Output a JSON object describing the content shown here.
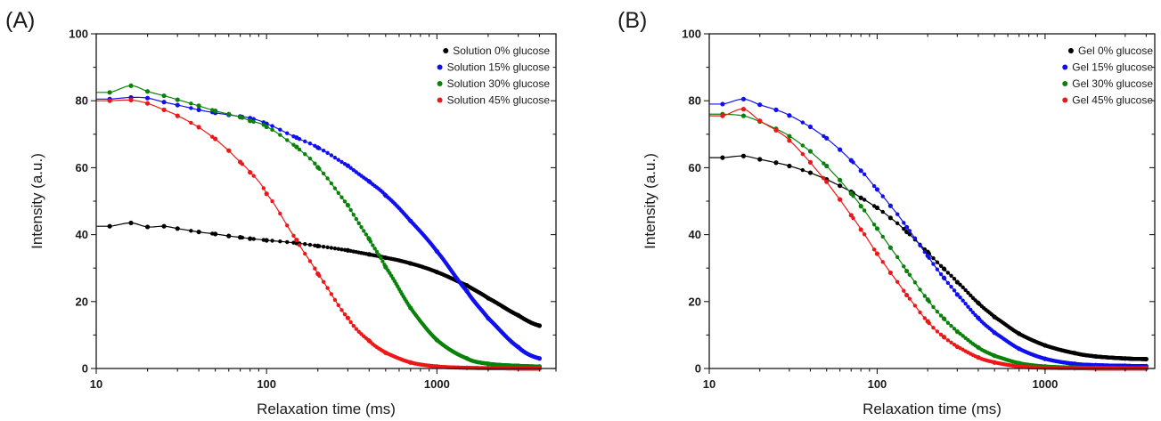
{
  "chart_data": [
    {
      "type": "scatter",
      "panel_label": "(A)",
      "xlabel": "Relaxation time (ms)",
      "ylabel": "Intensity (a.u.)",
      "xscale": "log",
      "xlim": [
        10,
        5000
      ],
      "ylim": [
        0,
        100
      ],
      "xticks": [
        10,
        100,
        1000
      ],
      "xtick_labels": [
        "10",
        "100",
        "1000"
      ],
      "yticks": [
        0,
        20,
        40,
        60,
        80,
        100
      ],
      "ytick_labels": [
        "0",
        "20",
        "40",
        "60",
        "80",
        "100"
      ],
      "legend_position": "top-right",
      "fit_lines": true,
      "series": [
        {
          "name": "Solution 0% glucose",
          "color": "#000000",
          "x": [
            12,
            16,
            20,
            25,
            30,
            40,
            50,
            60,
            70,
            80,
            100,
            150,
            200,
            300,
            400,
            500,
            700,
            1000,
            1500,
            2000,
            3000,
            4000
          ],
          "y": [
            42.5,
            43.5,
            42.3,
            42.5,
            41.8,
            40.8,
            40.2,
            39.6,
            39.2,
            38.8,
            38.3,
            37.5,
            36.6,
            35.3,
            34.1,
            33.1,
            31.4,
            28.8,
            24.8,
            21.0,
            15.9,
            12.8
          ]
        },
        {
          "name": "Solution 15% glucose",
          "color": "#1010ee",
          "x": [
            12,
            16,
            20,
            25,
            30,
            40,
            50,
            60,
            70,
            80,
            100,
            150,
            200,
            300,
            400,
            500,
            700,
            1000,
            1500,
            2000,
            3000,
            4000
          ],
          "y": [
            80.5,
            81.0,
            80.8,
            79.6,
            78.7,
            77.3,
            76.4,
            75.8,
            75.3,
            74.8,
            73.1,
            69.0,
            66.0,
            60.6,
            55.9,
            51.7,
            44.1,
            35.0,
            23.1,
            15.0,
            6.4,
            3.0
          ]
        },
        {
          "name": "Solution 30% glucose",
          "color": "#0a820a",
          "x": [
            12,
            16,
            20,
            25,
            30,
            40,
            50,
            60,
            70,
            80,
            100,
            150,
            200,
            300,
            400,
            500,
            700,
            1000,
            1500,
            2000,
            3000,
            4000
          ],
          "y": [
            82.5,
            84.5,
            82.8,
            81.5,
            80.3,
            78.5,
            77.0,
            76.0,
            75.1,
            74.0,
            72.2,
            66.2,
            60.1,
            48.8,
            38.7,
            30.3,
            18.1,
            8.5,
            3.0,
            1.4,
            0.8,
            0.6
          ]
        },
        {
          "name": "Solution 45% glucose",
          "color": "#ee1616",
          "x": [
            12,
            16,
            20,
            25,
            30,
            40,
            50,
            60,
            70,
            80,
            100,
            150,
            200,
            300,
            400,
            500,
            700,
            1000,
            1500,
            2000,
            3000,
            4000
          ],
          "y": [
            80.0,
            80.2,
            79.2,
            77.3,
            75.5,
            72.1,
            68.6,
            65.1,
            61.7,
            58.6,
            52.2,
            38.4,
            28.3,
            15.1,
            8.3,
            4.7,
            1.8,
            0.6,
            0.2,
            0.1,
            0.0,
            0.0
          ]
        }
      ]
    },
    {
      "type": "scatter",
      "panel_label": "(B)",
      "xlabel": "Relaxation time (ms)",
      "ylabel": "Intensity (a.u.)",
      "xscale": "log",
      "xlim": [
        10,
        4500
      ],
      "ylim": [
        0,
        100
      ],
      "xticks": [
        10,
        100,
        1000
      ],
      "xtick_labels": [
        "10",
        "100",
        "1000"
      ],
      "yticks": [
        0,
        20,
        40,
        60,
        80,
        100
      ],
      "ytick_labels": [
        "0",
        "20",
        "40",
        "60",
        "80",
        "100"
      ],
      "legend_position": "top-right",
      "fit_lines": true,
      "series": [
        {
          "name": "Gel 0% glucose",
          "color": "#000000",
          "x": [
            12,
            16,
            20,
            25,
            30,
            40,
            50,
            60,
            70,
            80,
            100,
            120,
            150,
            200,
            250,
            300,
            400,
            500,
            700,
            1000,
            1500,
            2000,
            3000,
            4000
          ],
          "y": [
            63.0,
            63.5,
            62.5,
            61.5,
            60.5,
            58.5,
            56.5,
            54.6,
            52.8,
            51.0,
            48.0,
            45.0,
            40.8,
            34.8,
            29.8,
            25.8,
            19.6,
            15.4,
            10.4,
            6.9,
            4.6,
            3.6,
            3.0,
            2.8
          ]
        },
        {
          "name": "Gel 15% glucose",
          "color": "#1010ee",
          "x": [
            12,
            16,
            20,
            25,
            30,
            40,
            50,
            60,
            70,
            80,
            100,
            120,
            150,
            200,
            250,
            300,
            400,
            500,
            700,
            1000,
            1500,
            2000,
            3000,
            4000
          ],
          "y": [
            79.0,
            80.5,
            78.8,
            77.3,
            75.6,
            72.2,
            68.8,
            65.4,
            62.2,
            59.1,
            53.5,
            48.6,
            42.2,
            33.7,
            27.1,
            22.1,
            15.1,
            10.7,
            5.9,
            2.9,
            1.4,
            1.0,
            0.8,
            0.7
          ]
        },
        {
          "name": "Gel 30% glucose",
          "color": "#0a820a",
          "x": [
            12,
            16,
            20,
            25,
            30,
            40,
            50,
            60,
            70,
            80,
            100,
            120,
            150,
            200,
            250,
            300,
            400,
            500,
            700,
            1000,
            1500,
            2000,
            3000,
            4000
          ],
          "y": [
            76.0,
            75.5,
            73.8,
            71.6,
            69.4,
            64.9,
            60.5,
            56.3,
            52.3,
            48.5,
            41.8,
            36.1,
            29.1,
            20.6,
            14.9,
            11.0,
            6.3,
            3.8,
            1.6,
            0.6,
            0.3,
            0.2,
            0.1,
            0.1
          ]
        },
        {
          "name": "Gel 45% glucose",
          "color": "#ee1616",
          "x": [
            12,
            16,
            20,
            25,
            30,
            40,
            50,
            60,
            70,
            80,
            100,
            120,
            150,
            200,
            250,
            300,
            400,
            500,
            700,
            1000,
            1500,
            2000,
            3000,
            4000
          ],
          "y": [
            75.5,
            77.5,
            74.0,
            71.2,
            68.1,
            61.6,
            55.8,
            50.5,
            45.8,
            41.5,
            34.3,
            28.6,
            21.9,
            14.1,
            9.4,
            6.5,
            3.3,
            1.8,
            0.6,
            0.2,
            0.1,
            0.0,
            0.0,
            0.0
          ]
        }
      ]
    }
  ]
}
